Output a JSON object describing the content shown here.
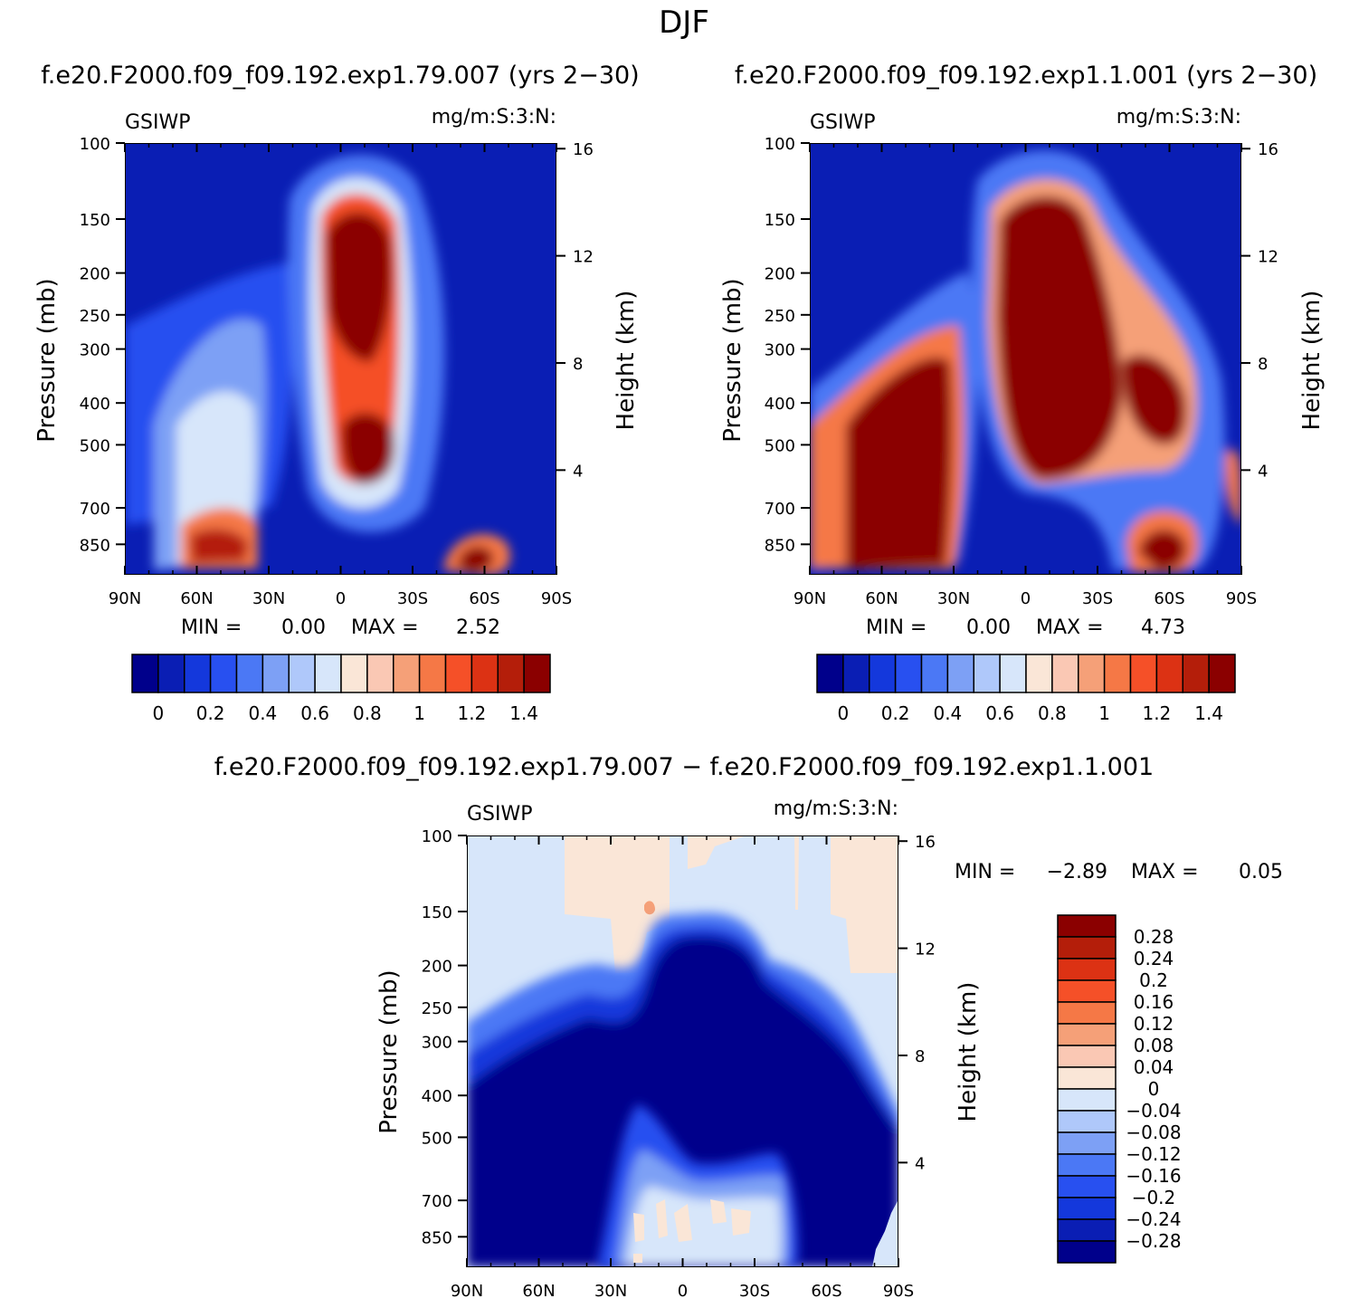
{
  "figure": {
    "title": "DJF",
    "top_left_title": "f.e20.F2000.f09_f09.192.exp1.79.007 (yrs 2−30)",
    "top_right_title": "f.e20.F2000.f09_f09.192.exp1.1.001 (yrs 2−30)",
    "diff_title": "f.e20.F2000.f09_f09.192.exp1.79.007 − f.e20.F2000.f09_f09.192.exp1.1.001"
  },
  "panels": [
    {
      "var": "GSIWP",
      "units": "mg/m:S:3:N:",
      "ylabel": "Pressure (mb)",
      "ylabel_right": "Height (km)",
      "min_label": "MIN =",
      "min_value": "0.00",
      "max_label": "MAX =",
      "max_value": "2.52"
    },
    {
      "var": "GSIWP",
      "units": "mg/m:S:3:N:",
      "ylabel": "Pressure (mb)",
      "ylabel_right": "Height (km)",
      "min_label": "MIN =",
      "min_value": "0.00",
      "max_label": "MAX =",
      "max_value": "4.73"
    },
    {
      "var": "GSIWP",
      "units": "mg/m:S:3:N:",
      "ylabel": "Pressure (mb)",
      "ylabel_right": "Height (km)",
      "min_label": "MIN =",
      "min_value": "−2.89",
      "max_label": "MAX =",
      "max_value": "0.05"
    }
  ],
  "chart_data": [
    {
      "type": "heatmap",
      "title": "f.e20.F2000.f09_f09.192.exp1.79.007 (yrs 2−30)",
      "variable": "GSIWP",
      "units": "mg/m:S:3:N:",
      "x_ticks": [
        "90N",
        "60N",
        "30N",
        "0",
        "30S",
        "60S",
        "90S"
      ],
      "y_ticks": [
        "100",
        "150",
        "200",
        "250",
        "300",
        "400",
        "500",
        "700",
        "850"
      ],
      "y_right_ticks": [
        "16",
        "12",
        "8",
        "4"
      ],
      "ylabel": "Pressure (mb)",
      "ylabel_right": "Height (km)",
      "ylim": [
        1000,
        100
      ],
      "min": 0.0,
      "max": 2.52,
      "features": [
        {
          "lat": 5,
          "p": 250,
          "value": 1.5
        },
        {
          "lat": 5,
          "p": 500,
          "value": 1.5
        },
        {
          "lat": 55,
          "p": 800,
          "value": 1.3
        },
        {
          "lat": 50,
          "p": 450,
          "value": 0.7
        },
        {
          "lat": -58,
          "p": 850,
          "value": 1.3
        }
      ],
      "colorbar": {
        "labels": [
          "0",
          "0.2",
          "0.4",
          "0.6",
          "0.8",
          "1",
          "1.2",
          "1.4"
        ],
        "colors": [
          "#00008b",
          "#0a1eb4",
          "#1438dc",
          "#2850f0",
          "#4b78f5",
          "#7da0f5",
          "#afc8fa",
          "#d7e6fa",
          "#fae6d7",
          "#fac8b4",
          "#f5a078",
          "#f57846",
          "#f55028",
          "#dc3214",
          "#b41e0a",
          "#8b0000"
        ]
      }
    },
    {
      "type": "heatmap",
      "title": "f.e20.F2000.f09_f09.192.exp1.1.001 (yrs 2−30)",
      "variable": "GSIWP",
      "units": "mg/m:S:3:N:",
      "x_ticks": [
        "90N",
        "60N",
        "30N",
        "0",
        "30S",
        "60S",
        "90S"
      ],
      "y_ticks": [
        "100",
        "150",
        "200",
        "250",
        "300",
        "400",
        "500",
        "700",
        "850"
      ],
      "y_right_ticks": [
        "16",
        "12",
        "8",
        "4"
      ],
      "ylabel": "Pressure (mb)",
      "ylabel_right": "Height (km)",
      "ylim": [
        1000,
        100
      ],
      "min": 0.0,
      "max": 4.73,
      "features": [
        {
          "lat": 5,
          "p": 300,
          "value": 1.5
        },
        {
          "lat": 60,
          "p": 600,
          "value": 1.5
        },
        {
          "lat": -52,
          "p": 420,
          "value": 1.4
        },
        {
          "lat": -58,
          "p": 850,
          "value": 1.5
        },
        {
          "lat": 85,
          "p": 500,
          "value": 1.0
        }
      ],
      "colorbar": {
        "labels": [
          "0",
          "0.2",
          "0.4",
          "0.6",
          "0.8",
          "1",
          "1.2",
          "1.4"
        ],
        "colors": [
          "#00008b",
          "#0a1eb4",
          "#1438dc",
          "#2850f0",
          "#4b78f5",
          "#7da0f5",
          "#afc8fa",
          "#d7e6fa",
          "#fae6d7",
          "#fac8b4",
          "#f5a078",
          "#f57846",
          "#f55028",
          "#dc3214",
          "#b41e0a",
          "#8b0000"
        ]
      }
    },
    {
      "type": "heatmap",
      "title": "f.e20.F2000.f09_f09.192.exp1.79.007 − f.e20.F2000.f09_f09.192.exp1.1.001",
      "variable": "GSIWP",
      "units": "mg/m:S:3:N:",
      "x_ticks": [
        "90N",
        "60N",
        "30N",
        "0",
        "30S",
        "60S",
        "90S"
      ],
      "y_ticks": [
        "100",
        "150",
        "200",
        "250",
        "300",
        "400",
        "500",
        "700",
        "850"
      ],
      "y_right_ticks": [
        "16",
        "12",
        "8",
        "4"
      ],
      "ylabel": "Pressure (mb)",
      "ylabel_right": "Height (km)",
      "ylim": [
        1000,
        100
      ],
      "min": -2.89,
      "max": 0.05,
      "features": [
        {
          "lat": 5,
          "p": 300,
          "value": -0.3
        },
        {
          "lat": 60,
          "p": 450,
          "value": -0.3
        },
        {
          "lat": 5,
          "p": 750,
          "value": -0.02
        },
        {
          "lat": 40,
          "p": 130,
          "value": 0.02
        }
      ],
      "colorbar": {
        "labels": [
          "0.28",
          "0.24",
          "0.2",
          "0.16",
          "0.12",
          "0.08",
          "0.04",
          "0",
          "−0.04",
          "−0.08",
          "−0.12",
          "−0.16",
          "−0.2",
          "−0.24",
          "−0.28"
        ],
        "colors": [
          "#8b0000",
          "#b41e0a",
          "#dc3214",
          "#f55028",
          "#f57846",
          "#f5a078",
          "#fac8b4",
          "#fae6d7",
          "#d7e6fa",
          "#afc8fa",
          "#7da0f5",
          "#4b78f5",
          "#2850f0",
          "#1438dc",
          "#0a1eb4",
          "#00008b"
        ]
      }
    }
  ]
}
